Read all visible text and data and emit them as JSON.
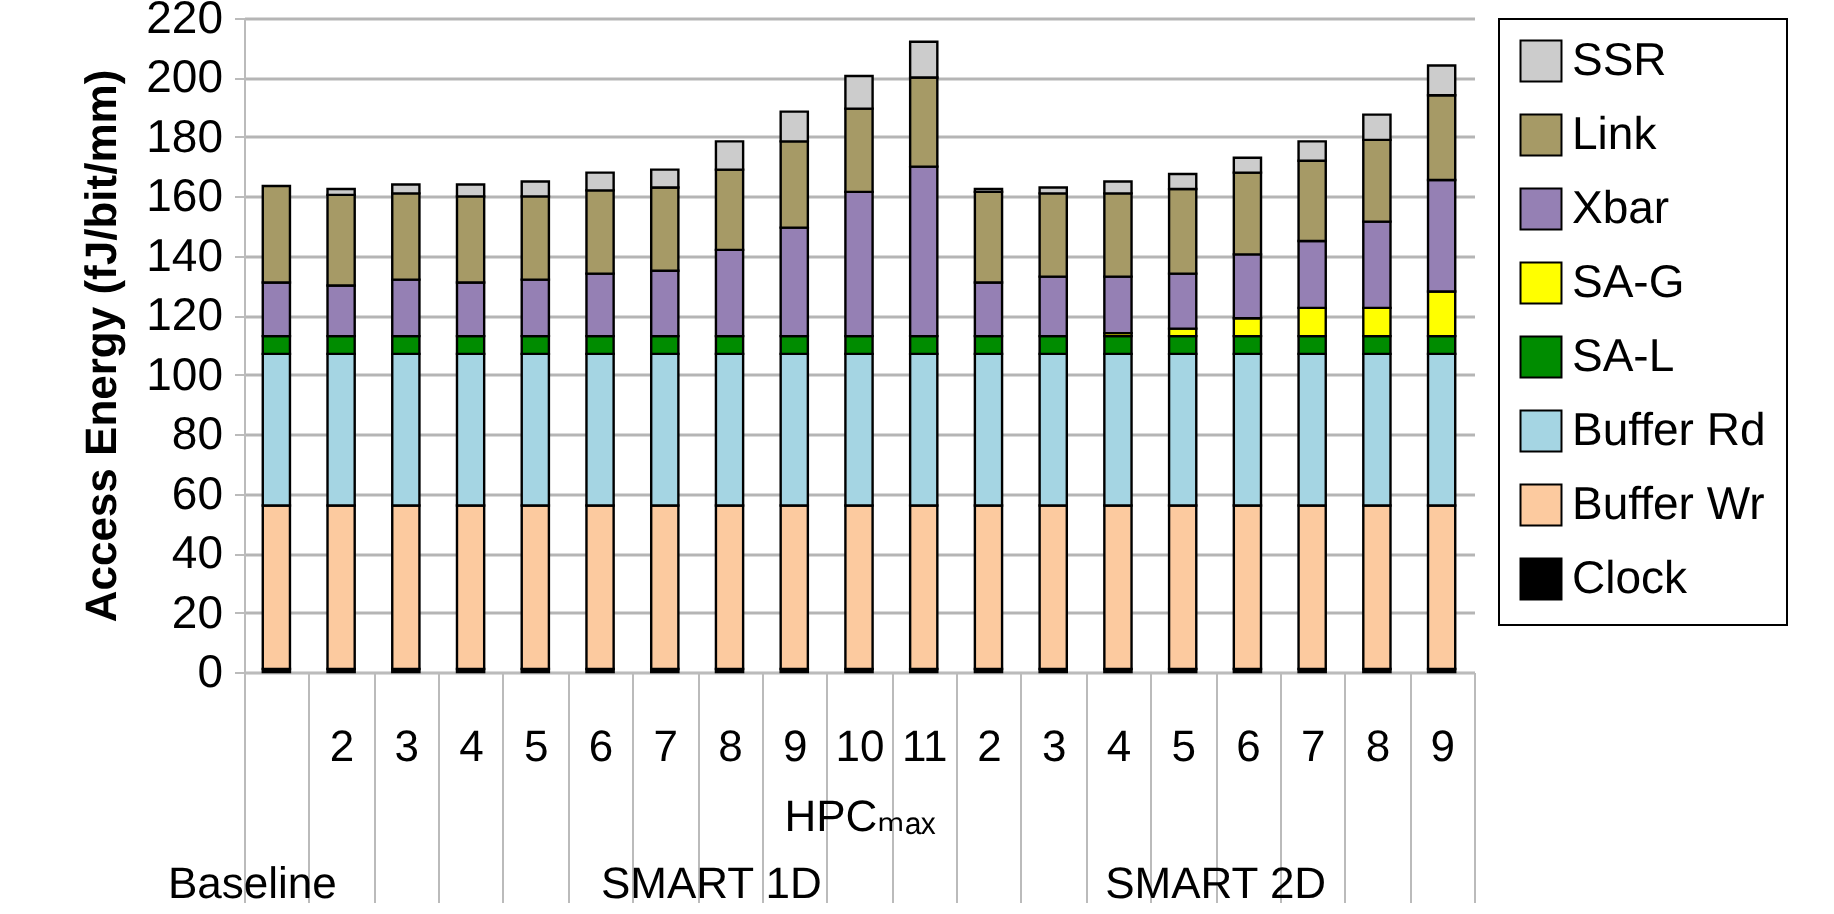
{
  "chart_data": {
    "type": "bar",
    "stacked": true,
    "ylabel": "Access Energy (fJ/bit/mm)",
    "xlabel": "HPCₘₐₓ",
    "categories": [
      null,
      "2",
      "3",
      "4",
      "5",
      "6",
      "7",
      "8",
      "9",
      "10",
      "11",
      "2",
      "3",
      "4",
      "5",
      "6",
      "7",
      "8",
      "9"
    ],
    "series": [
      {
        "name": "Clock",
        "color": "#000000",
        "values": [
          1,
          1,
          1,
          1,
          1,
          1,
          1,
          1,
          1,
          1,
          1,
          1,
          1,
          1,
          1,
          1,
          1,
          1,
          1
        ]
      },
      {
        "name": "Buffer Wr",
        "color": "#fcca9f",
        "values": [
          55,
          55,
          55,
          55,
          55,
          55,
          55,
          55,
          55,
          55,
          55,
          55,
          55,
          55,
          55,
          55,
          55,
          55,
          55
        ]
      },
      {
        "name": "Buffer Rd",
        "color": "#a5d5e3",
        "values": [
          51,
          51,
          51,
          51,
          51,
          51,
          51,
          51,
          51,
          51,
          51,
          51,
          51,
          51,
          51,
          51,
          51,
          51,
          51
        ]
      },
      {
        "name": "SA-L",
        "color": "#008c00",
        "values": [
          6,
          6,
          6,
          6,
          6,
          6,
          6,
          6,
          6,
          6,
          6,
          6,
          6,
          6,
          6,
          6,
          6,
          6,
          6
        ]
      },
      {
        "name": "SA-G",
        "color": "#ffff00",
        "values": [
          null,
          null,
          null,
          null,
          null,
          null,
          null,
          null,
          null,
          null,
          null,
          null,
          null,
          1,
          2.5,
          6,
          9.5,
          9.5,
          15
        ]
      },
      {
        "name": "Xbar",
        "color": "#9580b4",
        "values": [
          18,
          17,
          19,
          18,
          19,
          21,
          22,
          29,
          36.5,
          48.5,
          57,
          18,
          20,
          19,
          18.5,
          21.5,
          22.5,
          29,
          37.5
        ]
      },
      {
        "name": "Link",
        "color": "#a69a66",
        "values": [
          32.5,
          30.5,
          29,
          29,
          28,
          28,
          28,
          27,
          29,
          28,
          30,
          30.5,
          28,
          28,
          28.5,
          27.5,
          27,
          27.5,
          28.5
        ]
      },
      {
        "name": "SSR",
        "color": "#cccccc",
        "values": [
          null,
          2,
          3,
          4,
          5,
          6,
          6,
          9.5,
          10,
          11,
          12,
          1,
          2,
          4,
          5,
          5,
          6.5,
          8.5,
          10
        ]
      }
    ],
    "ylim": [
      0,
      220
    ],
    "yticks": [
      0,
      20,
      40,
      60,
      80,
      100,
      120,
      140,
      160,
      180,
      200,
      220
    ],
    "grid": "y",
    "legend": "right",
    "annotations": [
      "Baseline",
      "SMART  1D",
      "SMART  2D"
    ]
  }
}
